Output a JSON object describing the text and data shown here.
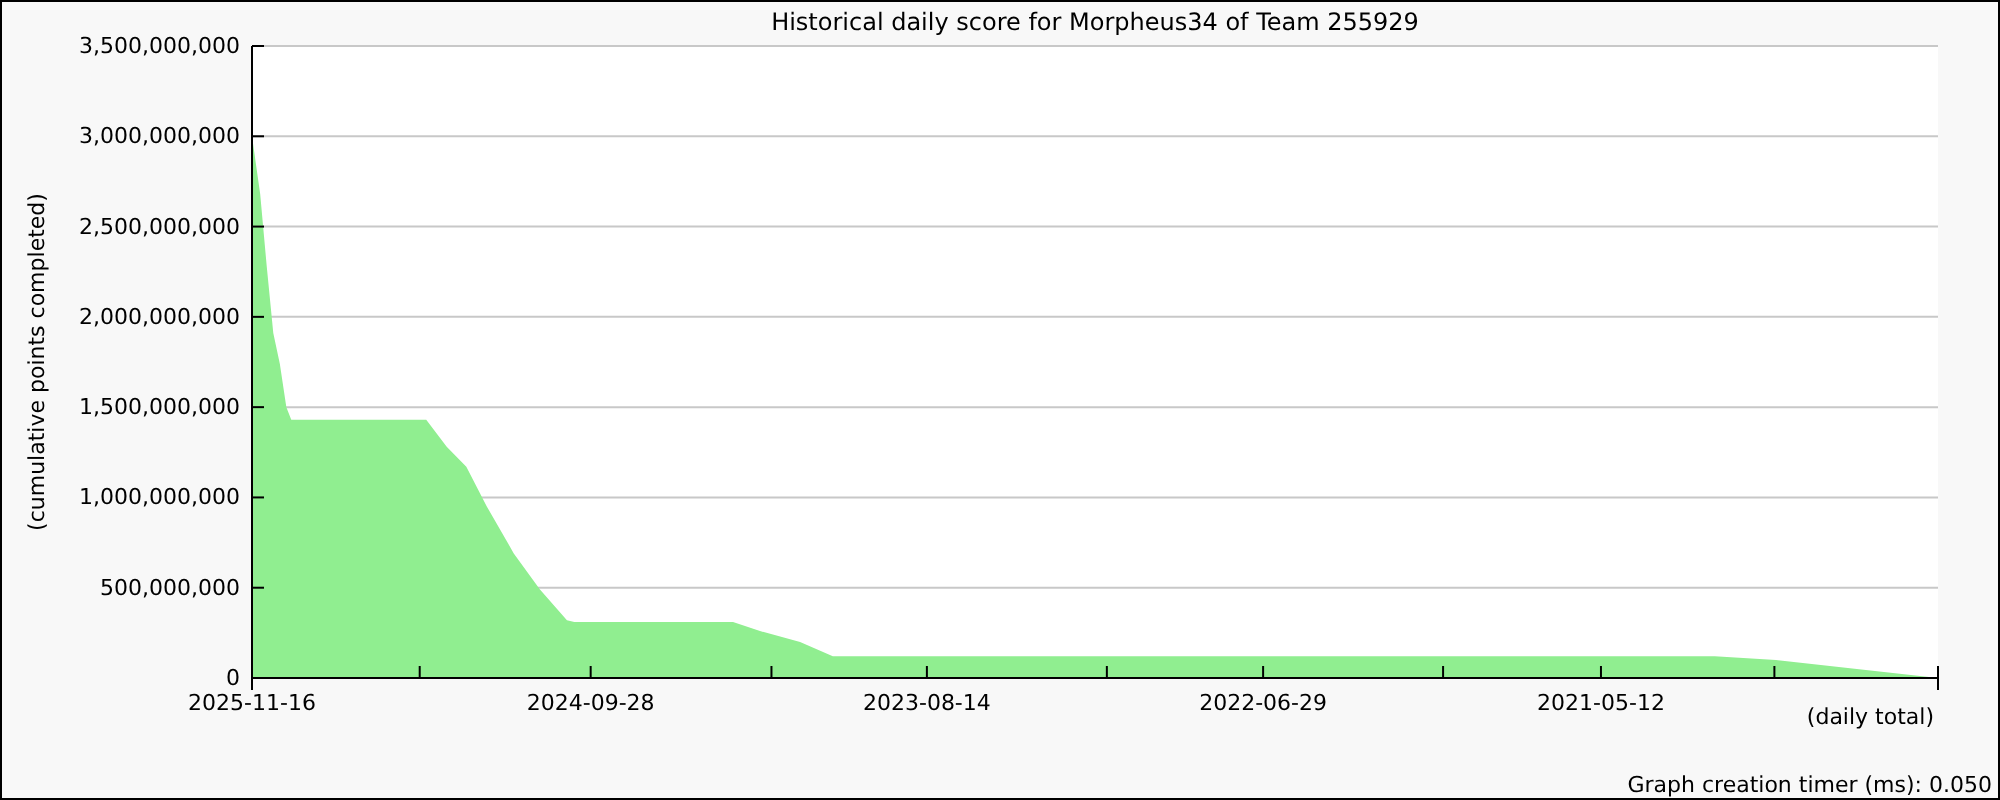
{
  "chart_data": {
    "type": "area",
    "title": "Historical daily score for Morpheus34 of Team 255929",
    "xlabel": "(daily total)",
    "ylabel": "(cumulative points completed)",
    "annotations": [
      "Graph creation timer (ms): 0.050"
    ],
    "x": [
      "2025-11-16",
      "2025-11-06",
      "2025-10-29",
      "2025-10-21",
      "2025-10-13",
      "2025-10-05",
      "2025-09-29",
      "2025-04-17",
      "2025-03-23",
      "2025-02-27",
      "2025-02-02",
      "2024-12-31",
      "2024-11-29",
      "2024-10-27",
      "2024-10-18",
      "2024-04-07",
      "2024-03-05",
      "2024-01-16",
      "2023-12-07",
      "2020-12-24",
      "2020-10-10",
      "2020-03-26"
    ],
    "series": [
      {
        "color": "#90ee90",
        "values": [
          3000000000,
          2680000000,
          2280000000,
          1910000000,
          1740000000,
          1500000000,
          1430000000,
          1430000000,
          1280000000,
          1170000000,
          950000000,
          690000000,
          490000000,
          320000000,
          310000000,
          310000000,
          260000000,
          200000000,
          120000000,
          120000000,
          100000000,
          0
        ]
      }
    ],
    "xlim": [
      "2025-11-16",
      "2020-03-26"
    ],
    "xticks": [
      {
        "value": "2025-11-16",
        "label": "2025-11-16"
      },
      {
        "value": "2025-04-25",
        "label": null
      },
      {
        "value": "2024-09-28",
        "label": "2024-09-28"
      },
      {
        "value": "2024-02-20",
        "label": null
      },
      {
        "value": "2023-08-14",
        "label": "2023-08-14"
      },
      {
        "value": "2023-01-06",
        "label": null
      },
      {
        "value": "2022-06-29",
        "label": "2022-06-29"
      },
      {
        "value": "2021-11-21",
        "label": null
      },
      {
        "value": "2021-05-12",
        "label": "2021-05-12"
      },
      {
        "value": "2020-10-12",
        "label": null
      },
      {
        "value": "2020-03-26",
        "label": null
      }
    ],
    "ylim": [
      0,
      3500000000
    ],
    "yticks": [
      {
        "value": 0,
        "label": "0"
      },
      {
        "value": 500000000,
        "label": "500,000,000"
      },
      {
        "value": 1000000000,
        "label": "1,000,000,000"
      },
      {
        "value": 1500000000,
        "label": "1,500,000,000"
      },
      {
        "value": 2000000000,
        "label": "2,000,000,000"
      },
      {
        "value": 2500000000,
        "label": "2,500,000,000"
      },
      {
        "value": 3000000000,
        "label": "3,000,000,000"
      },
      {
        "value": 3500000000,
        "label": "3,500,000,000"
      }
    ],
    "grid": "y"
  }
}
